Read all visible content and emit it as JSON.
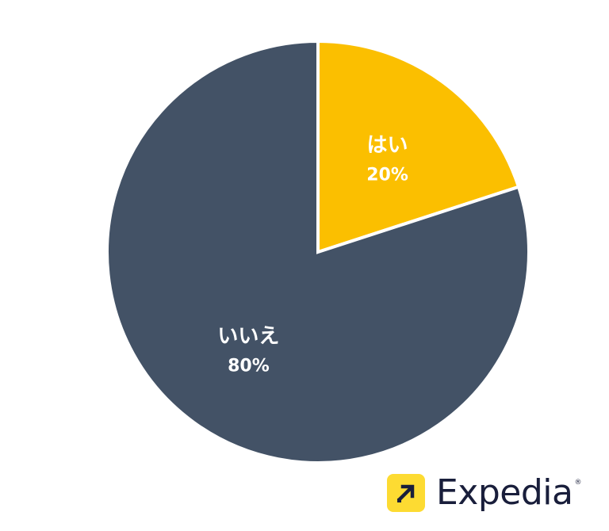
{
  "chart_data": {
    "type": "pie",
    "title": "",
    "start_angle_deg": 0,
    "direction": "clockwise",
    "slices": [
      {
        "label": "はい",
        "value": 20,
        "display": "20%",
        "color": "#FBBF00"
      },
      {
        "label": "いいえ",
        "value": 80,
        "display": "80%",
        "color": "#435266"
      }
    ]
  },
  "brand": {
    "name": "Expedia",
    "registered": "®",
    "icon": "arrow-up-right-icon",
    "badge_color": "#FDDB32"
  }
}
